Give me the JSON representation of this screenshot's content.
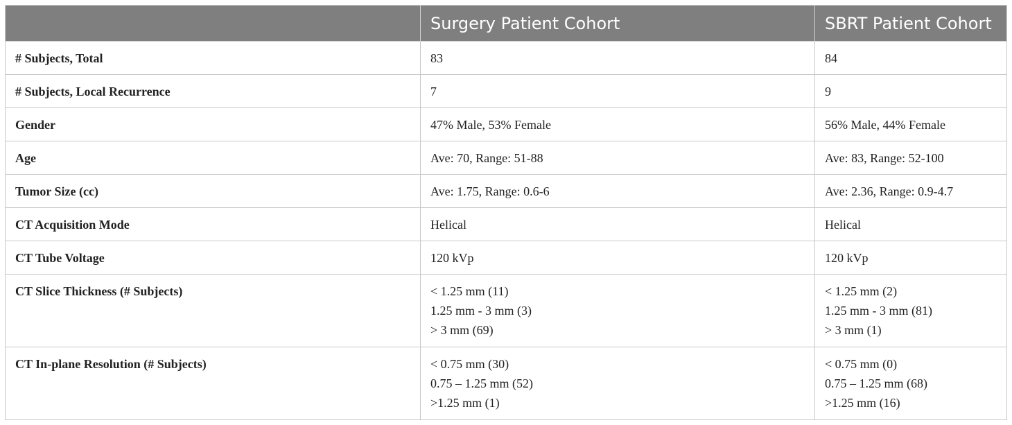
{
  "table": {
    "headers": [
      "",
      "Surgery Patient Cohort",
      "SBRT Patient Cohort"
    ],
    "rows": [
      {
        "label": "# Subjects, Total",
        "surgery": [
          "83"
        ],
        "sbrt": [
          "84"
        ]
      },
      {
        "label": "# Subjects, Local Recurrence",
        "surgery": [
          "7"
        ],
        "sbrt": [
          "9"
        ]
      },
      {
        "label": "Gender",
        "surgery": [
          "47% Male, 53% Female"
        ],
        "sbrt": [
          "56% Male, 44% Female"
        ]
      },
      {
        "label": "Age",
        "surgery": [
          "Ave: 70, Range: 51-88"
        ],
        "sbrt": [
          "Ave: 83, Range: 52-100"
        ]
      },
      {
        "label": "Tumor Size (cc)",
        "surgery": [
          "Ave: 1.75, Range: 0.6-6"
        ],
        "sbrt": [
          "Ave: 2.36, Range: 0.9-4.7"
        ]
      },
      {
        "label": "CT Acquisition Mode",
        "surgery": [
          "Helical"
        ],
        "sbrt": [
          "Helical"
        ]
      },
      {
        "label": "CT Tube Voltage",
        "surgery": [
          "120 kVp"
        ],
        "sbrt": [
          "120 kVp"
        ]
      },
      {
        "label": "CT Slice Thickness (# Subjects)",
        "surgery": [
          "< 1.25 mm (11)",
          "1.25 mm - 3 mm (3)",
          "> 3 mm (69)"
        ],
        "sbrt": [
          "< 1.25 mm (2)",
          "1.25 mm - 3 mm (81)",
          "> 3 mm (1)"
        ]
      },
      {
        "label": "CT In-plane Resolution (# Subjects)",
        "surgery": [
          "< 0.75 mm (30)",
          "0.75 – 1.25 mm (52)",
          ">1.25 mm (1)"
        ],
        "sbrt": [
          "< 0.75 mm (0)",
          "0.75 – 1.25 mm (68)",
          ">1.25 mm (16)"
        ]
      }
    ]
  }
}
